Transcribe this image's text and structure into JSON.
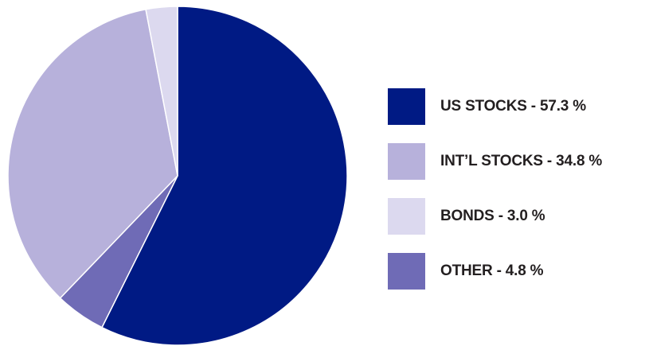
{
  "chart_data": {
    "type": "pie",
    "title": "",
    "start": "12 o'clock",
    "direction": "clockwise",
    "slices": [
      {
        "label": "US STOCKS",
        "value": 57.3,
        "color": "#001a84",
        "legend": "US STOCKS - 57.3 %"
      },
      {
        "label": "OTHER",
        "value": 4.8,
        "color": "#6f6bb6",
        "legend": "OTHER - 4.8 %"
      },
      {
        "label": "INT'L STOCKS",
        "value": 34.8,
        "color": "#b7b1db",
        "legend": "INT’L STOCKS - 34.8 %"
      },
      {
        "label": "BONDS",
        "value": 3.0,
        "color": "#dcd9ef",
        "legend": "BONDS - 3.0 %"
      }
    ],
    "legend": {
      "placement": "right",
      "order": [
        "US STOCKS",
        "INT'L STOCKS",
        "BONDS",
        "OTHER"
      ]
    }
  }
}
